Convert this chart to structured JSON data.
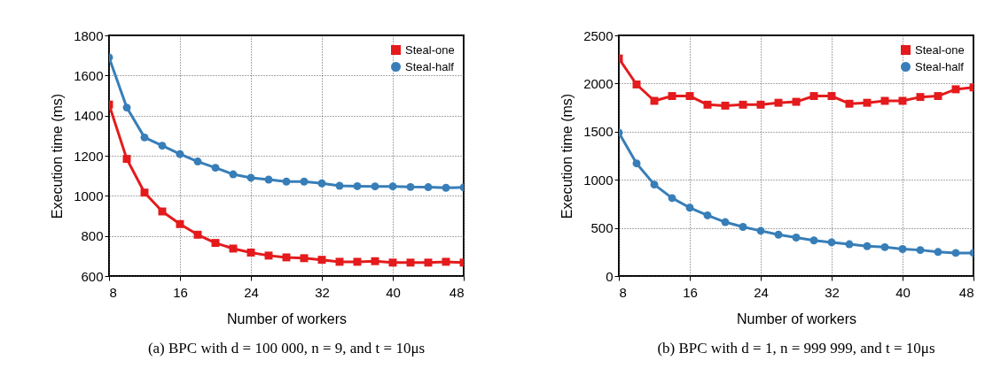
{
  "chart_data": [
    {
      "type": "line",
      "title": "(a) BPC with d = 100 000, n = 9, and t = 10μs",
      "xlabel": "Number of workers",
      "ylabel": "Execution time (ms)",
      "x": [
        8,
        10,
        12,
        14,
        16,
        18,
        20,
        22,
        24,
        26,
        28,
        30,
        32,
        34,
        36,
        38,
        40,
        42,
        44,
        46,
        48
      ],
      "xlim": [
        8,
        48
      ],
      "xticks": [
        8,
        16,
        24,
        32,
        40,
        48
      ],
      "ylim": [
        600,
        1800
      ],
      "yticks": [
        600,
        800,
        1000,
        1200,
        1400,
        1600,
        1800
      ],
      "grid": true,
      "legend": "top right",
      "series": [
        {
          "name": "Steal-one",
          "color": "#e41a1c",
          "marker": "square",
          "values": [
            1455,
            1184,
            1016,
            922,
            859,
            806,
            765,
            737,
            717,
            702,
            693,
            689,
            681,
            671,
            671,
            674,
            667,
            667,
            667,
            671,
            667
          ]
        },
        {
          "name": "Steal-half",
          "color": "#377eb8",
          "marker": "circle",
          "values": [
            1690,
            1440,
            1291,
            1250,
            1208,
            1171,
            1140,
            1107,
            1090,
            1081,
            1071,
            1071,
            1062,
            1050,
            1048,
            1047,
            1047,
            1044,
            1043,
            1040,
            1042
          ]
        }
      ]
    },
    {
      "type": "line",
      "title": "(b) BPC with d = 1, n = 999 999, and t = 10μs",
      "xlabel": "Number of workers",
      "ylabel": "Execution time (ms)",
      "x": [
        8,
        10,
        12,
        14,
        16,
        18,
        20,
        22,
        24,
        26,
        28,
        30,
        32,
        34,
        36,
        38,
        40,
        42,
        44,
        46,
        48
      ],
      "xlim": [
        8,
        48
      ],
      "xticks": [
        8,
        16,
        24,
        32,
        40,
        48
      ],
      "ylim": [
        0,
        2500
      ],
      "yticks": [
        0,
        500,
        1000,
        1500,
        2000,
        2500
      ],
      "grid": true,
      "legend": "top right",
      "series": [
        {
          "name": "Steal-one",
          "color": "#e41a1c",
          "marker": "square",
          "values": [
            2260,
            1990,
            1820,
            1870,
            1870,
            1780,
            1770,
            1780,
            1780,
            1800,
            1810,
            1870,
            1870,
            1790,
            1800,
            1820,
            1820,
            1860,
            1870,
            1940,
            1960
          ]
        },
        {
          "name": "Steal-half",
          "color": "#377eb8",
          "marker": "circle",
          "values": [
            1490,
            1170,
            950,
            810,
            710,
            630,
            560,
            510,
            470,
            430,
            400,
            370,
            350,
            330,
            310,
            300,
            280,
            270,
            250,
            240,
            240
          ]
        }
      ]
    }
  ]
}
